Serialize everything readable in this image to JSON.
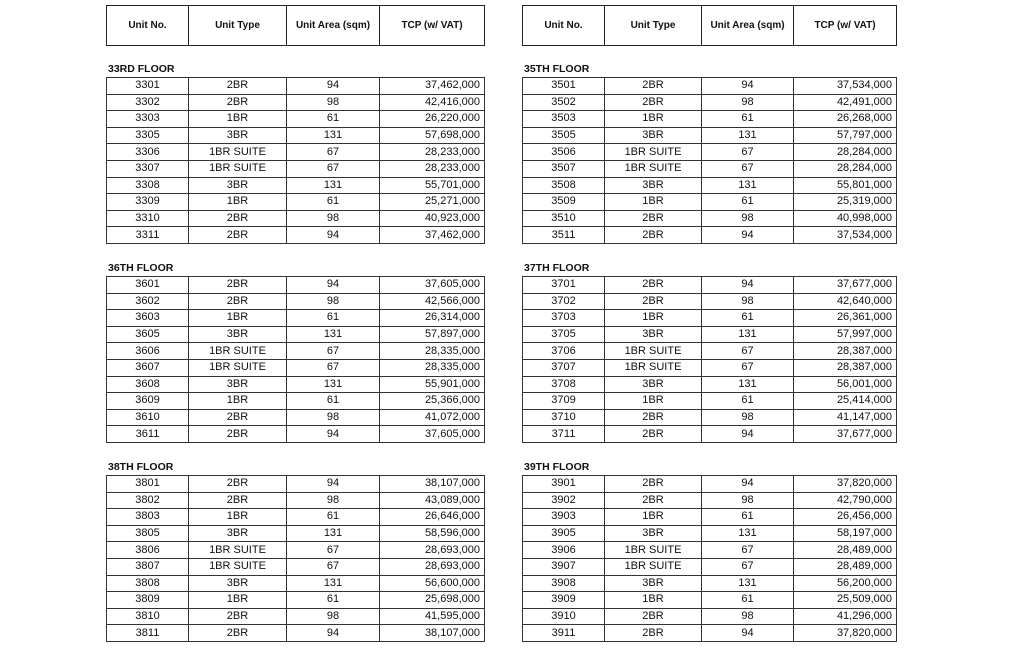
{
  "columns": [
    "Unit No.",
    "Unit Type",
    "Unit Area (sqm)",
    "TCP (w/ VAT)"
  ],
  "floors": [
    {
      "label": "33RD FLOOR",
      "rows": [
        [
          "3301",
          "2BR",
          "94",
          "37,462,000"
        ],
        [
          "3302",
          "2BR",
          "98",
          "42,416,000"
        ],
        [
          "3303",
          "1BR",
          "61",
          "26,220,000"
        ],
        [
          "3305",
          "3BR",
          "131",
          "57,698,000"
        ],
        [
          "3306",
          "1BR SUITE",
          "67",
          "28,233,000"
        ],
        [
          "3307",
          "1BR SUITE",
          "67",
          "28,233,000"
        ],
        [
          "3308",
          "3BR",
          "131",
          "55,701,000"
        ],
        [
          "3309",
          "1BR",
          "61",
          "25,271,000"
        ],
        [
          "3310",
          "2BR",
          "98",
          "40,923,000"
        ],
        [
          "3311",
          "2BR",
          "94",
          "37,462,000"
        ]
      ]
    },
    {
      "label": "35TH FLOOR",
      "rows": [
        [
          "3501",
          "2BR",
          "94",
          "37,534,000"
        ],
        [
          "3502",
          "2BR",
          "98",
          "42,491,000"
        ],
        [
          "3503",
          "1BR",
          "61",
          "26,268,000"
        ],
        [
          "3505",
          "3BR",
          "131",
          "57,797,000"
        ],
        [
          "3506",
          "1BR SUITE",
          "67",
          "28,284,000"
        ],
        [
          "3507",
          "1BR SUITE",
          "67",
          "28,284,000"
        ],
        [
          "3508",
          "3BR",
          "131",
          "55,801,000"
        ],
        [
          "3509",
          "1BR",
          "61",
          "25,319,000"
        ],
        [
          "3510",
          "2BR",
          "98",
          "40,998,000"
        ],
        [
          "3511",
          "2BR",
          "94",
          "37,534,000"
        ]
      ]
    },
    {
      "label": "36TH FLOOR",
      "rows": [
        [
          "3601",
          "2BR",
          "94",
          "37,605,000"
        ],
        [
          "3602",
          "2BR",
          "98",
          "42,566,000"
        ],
        [
          "3603",
          "1BR",
          "61",
          "26,314,000"
        ],
        [
          "3605",
          "3BR",
          "131",
          "57,897,000"
        ],
        [
          "3606",
          "1BR SUITE",
          "67",
          "28,335,000"
        ],
        [
          "3607",
          "1BR SUITE",
          "67",
          "28,335,000"
        ],
        [
          "3608",
          "3BR",
          "131",
          "55,901,000"
        ],
        [
          "3609",
          "1BR",
          "61",
          "25,366,000"
        ],
        [
          "3610",
          "2BR",
          "98",
          "41,072,000"
        ],
        [
          "3611",
          "2BR",
          "94",
          "37,605,000"
        ]
      ]
    },
    {
      "label": "37TH FLOOR",
      "rows": [
        [
          "3701",
          "2BR",
          "94",
          "37,677,000"
        ],
        [
          "3702",
          "2BR",
          "98",
          "42,640,000"
        ],
        [
          "3703",
          "1BR",
          "61",
          "26,361,000"
        ],
        [
          "3705",
          "3BR",
          "131",
          "57,997,000"
        ],
        [
          "3706",
          "1BR SUITE",
          "67",
          "28,387,000"
        ],
        [
          "3707",
          "1BR SUITE",
          "67",
          "28,387,000"
        ],
        [
          "3708",
          "3BR",
          "131",
          "56,001,000"
        ],
        [
          "3709",
          "1BR",
          "61",
          "25,414,000"
        ],
        [
          "3710",
          "2BR",
          "98",
          "41,147,000"
        ],
        [
          "3711",
          "2BR",
          "94",
          "37,677,000"
        ]
      ]
    },
    {
      "label": "38TH FLOOR",
      "rows": [
        [
          "3801",
          "2BR",
          "94",
          "38,107,000"
        ],
        [
          "3802",
          "2BR",
          "98",
          "43,089,000"
        ],
        [
          "3803",
          "1BR",
          "61",
          "26,646,000"
        ],
        [
          "3805",
          "3BR",
          "131",
          "58,596,000"
        ],
        [
          "3806",
          "1BR SUITE",
          "67",
          "28,693,000"
        ],
        [
          "3807",
          "1BR SUITE",
          "67",
          "28,693,000"
        ],
        [
          "3808",
          "3BR",
          "131",
          "56,600,000"
        ],
        [
          "3809",
          "1BR",
          "61",
          "25,698,000"
        ],
        [
          "3810",
          "2BR",
          "98",
          "41,595,000"
        ],
        [
          "3811",
          "2BR",
          "94",
          "38,107,000"
        ]
      ]
    },
    {
      "label": "39TH FLOOR",
      "rows": [
        [
          "3901",
          "2BR",
          "94",
          "37,820,000"
        ],
        [
          "3902",
          "2BR",
          "98",
          "42,790,000"
        ],
        [
          "3903",
          "1BR",
          "61",
          "26,456,000"
        ],
        [
          "3905",
          "3BR",
          "131",
          "58,197,000"
        ],
        [
          "3906",
          "1BR SUITE",
          "67",
          "28,489,000"
        ],
        [
          "3907",
          "1BR SUITE",
          "67",
          "28,489,000"
        ],
        [
          "3908",
          "3BR",
          "131",
          "56,200,000"
        ],
        [
          "3909",
          "1BR",
          "61",
          "25,509,000"
        ],
        [
          "3910",
          "2BR",
          "98",
          "41,296,000"
        ],
        [
          "3911",
          "2BR",
          "94",
          "37,820,000"
        ]
      ]
    }
  ]
}
